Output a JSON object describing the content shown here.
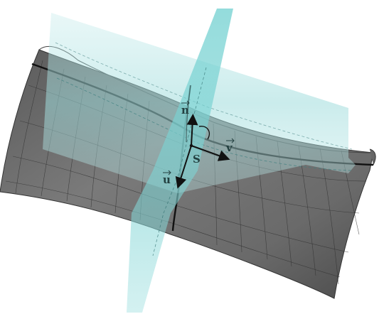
{
  "figure": {
    "labels": {
      "normal_vector": "n",
      "tangent_v": "v",
      "tangent_u": "u",
      "point": "S"
    },
    "colors": {
      "surface": "#6f6f6f",
      "surface_dark": "#4a4a4a",
      "plane": "#8fd6d6",
      "curve": "#111111",
      "label": "#234040"
    }
  }
}
